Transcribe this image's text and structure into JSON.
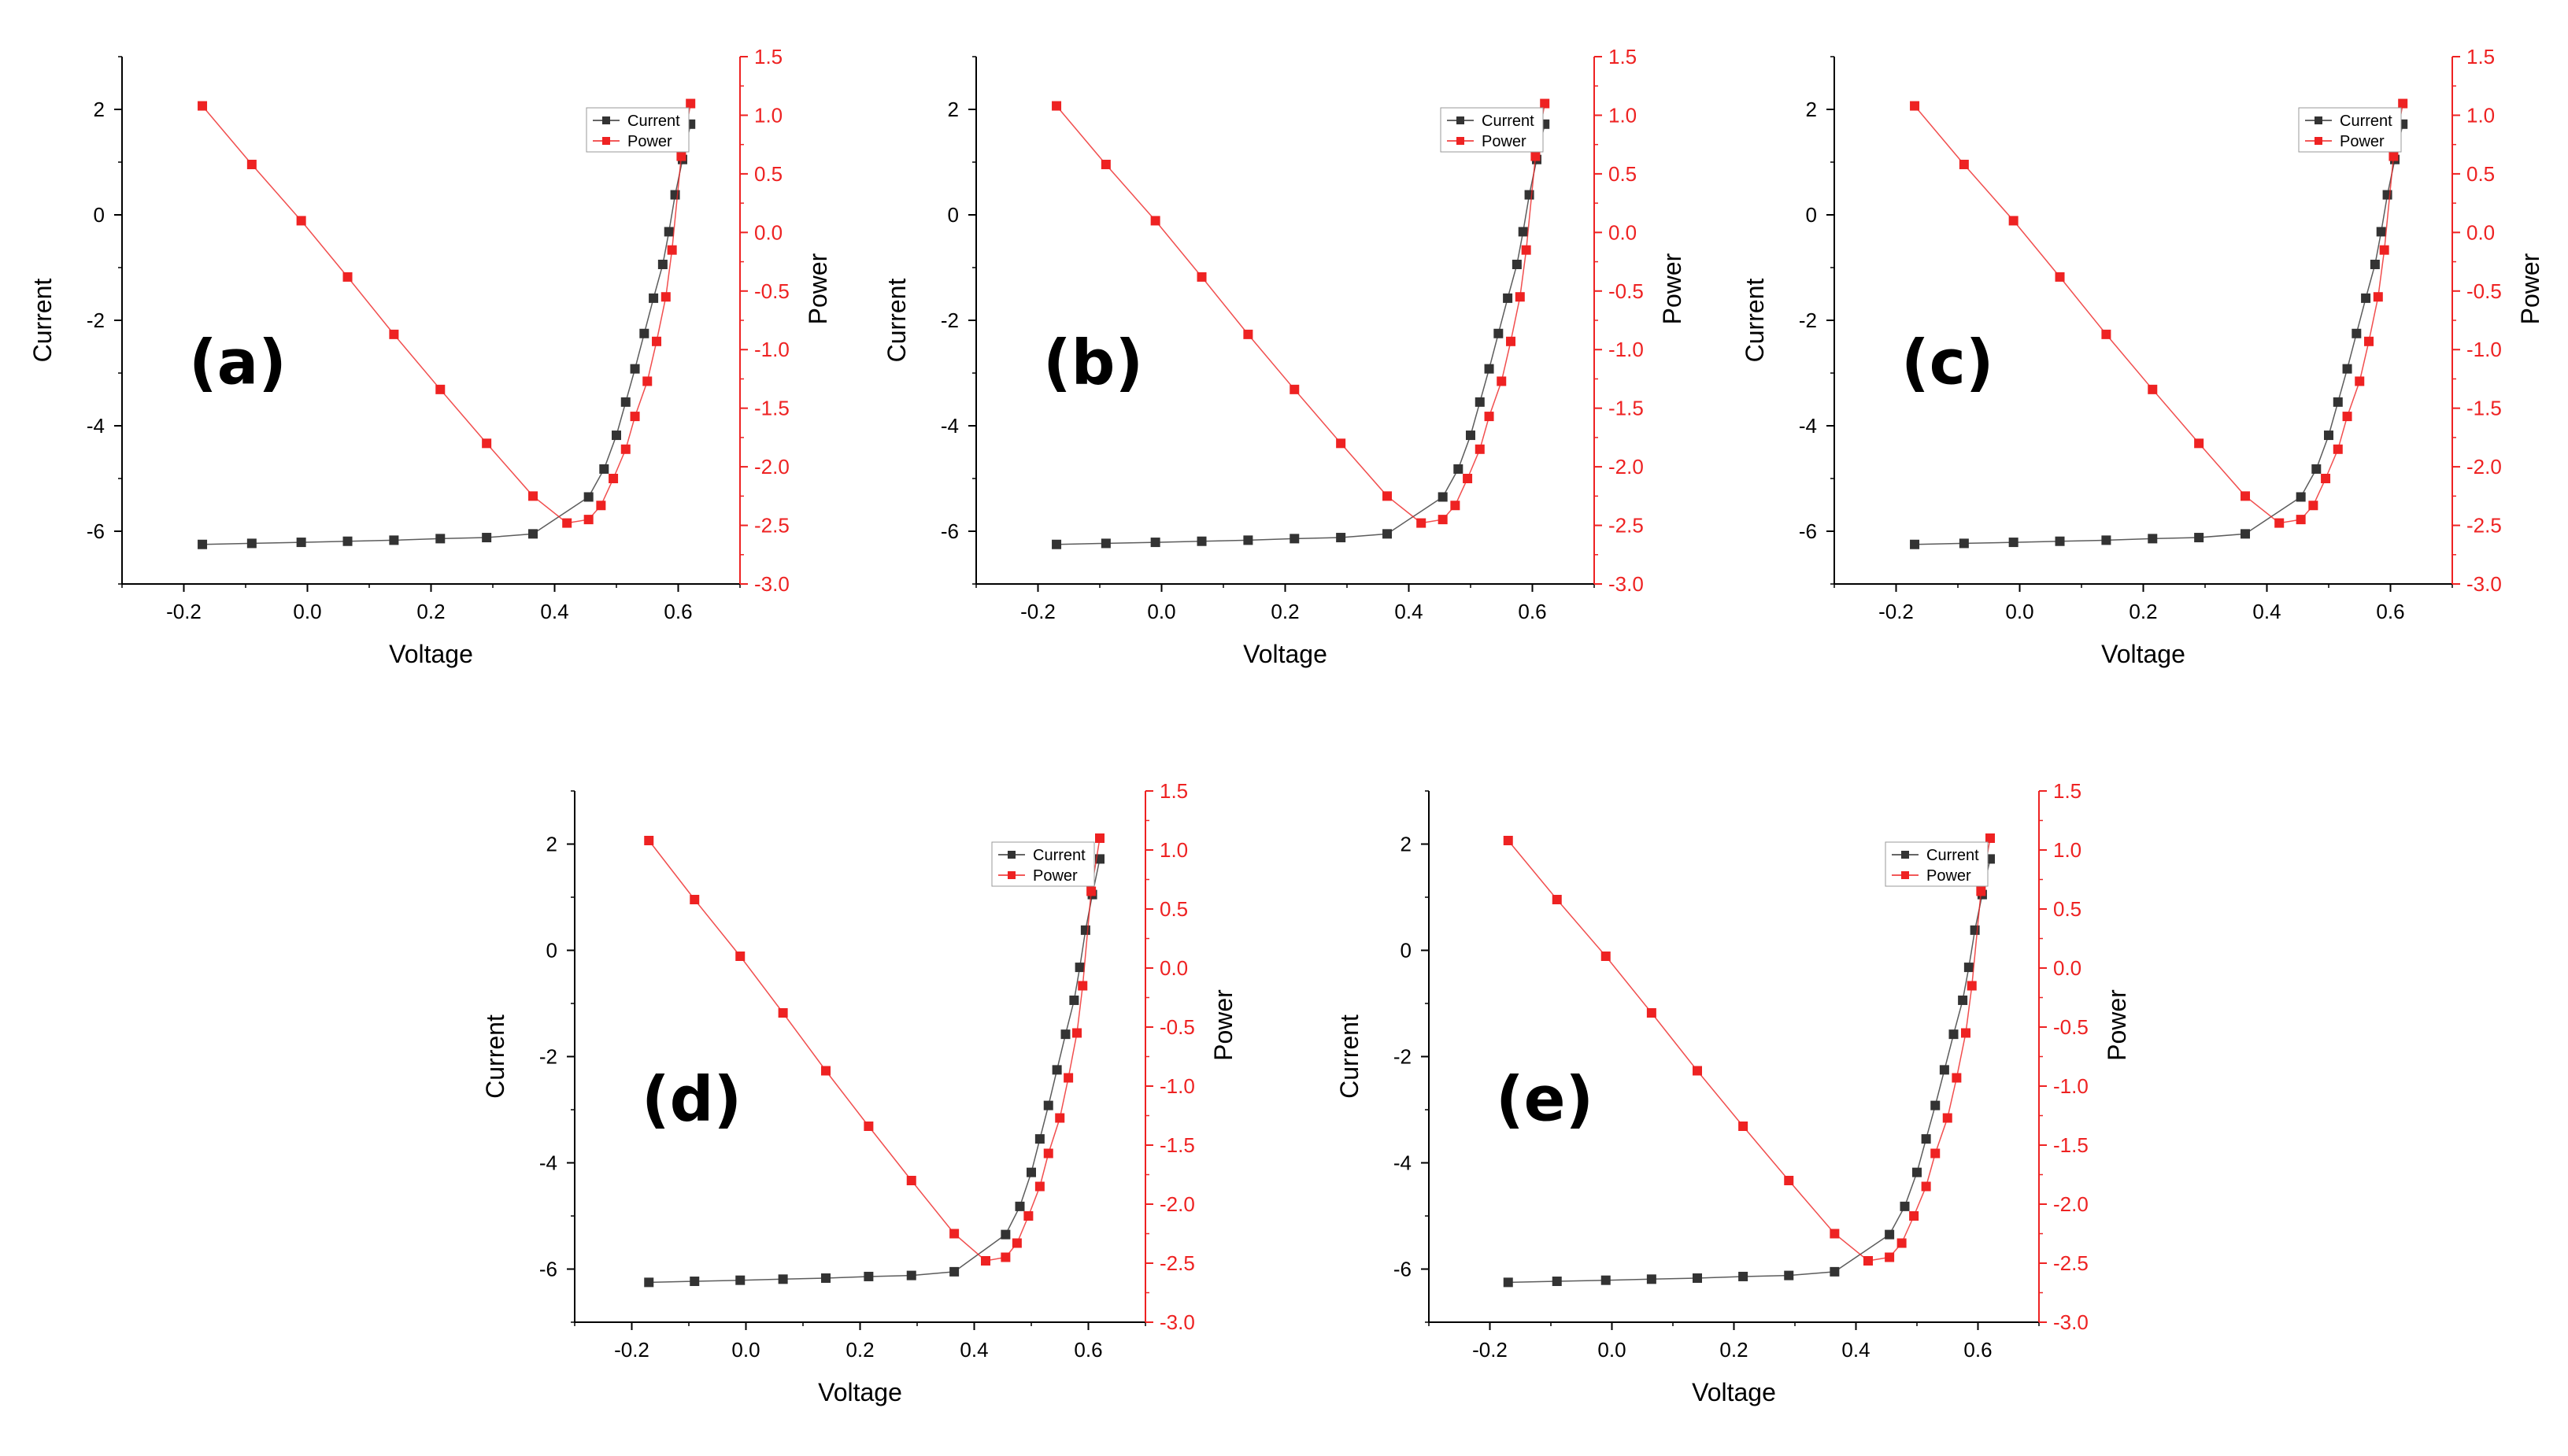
{
  "colors": {
    "current": "#333333",
    "power": "#ee2222",
    "axis": "#000000",
    "power_axis": "#ee2222"
  },
  "chart_data": [
    {
      "type": "line",
      "panel_label": "(a)",
      "xlabel": "Voltage",
      "ylabel": "Current",
      "y2label": "Power",
      "xlim": [
        -0.3,
        0.7
      ],
      "ylim": [
        -7,
        3
      ],
      "y2lim": [
        -3.0,
        1.5
      ],
      "xticks": [
        "-0.2",
        "0.0",
        "0.2",
        "0.4",
        "0.6"
      ],
      "yticks": [
        "-6",
        "-4",
        "-2",
        "0",
        "2"
      ],
      "y2ticks": [
        "-3.0",
        "-2.5",
        "-2.0",
        "-1.5",
        "-1.0",
        "-0.5",
        "0.0",
        "0.5",
        "1.0",
        "1.5"
      ],
      "legend": [
        "Current",
        "Power"
      ],
      "series": [
        {
          "name": "Current",
          "axis": "left",
          "x": [
            -0.17,
            -0.09,
            -0.01,
            0.065,
            0.14,
            0.215,
            0.29,
            0.365,
            0.455,
            0.48,
            0.5,
            0.515,
            0.53,
            0.545,
            0.56,
            0.575,
            0.585,
            0.595,
            0.607,
            0.62
          ],
          "y": [
            -6.25,
            -6.23,
            -6.21,
            -6.19,
            -6.17,
            -6.14,
            -6.12,
            -6.05,
            -5.35,
            -4.82,
            -4.18,
            -3.55,
            -2.92,
            -2.25,
            -1.58,
            -0.94,
            -0.32,
            0.38,
            1.05,
            1.72
          ]
        },
        {
          "name": "Power",
          "axis": "right",
          "x": [
            -0.17,
            -0.09,
            -0.01,
            0.065,
            0.14,
            0.215,
            0.29,
            0.365,
            0.42,
            0.455,
            0.475,
            0.495,
            0.515,
            0.53,
            0.55,
            0.565,
            0.58,
            0.59,
            0.605,
            0.62
          ],
          "y": [
            1.08,
            0.58,
            0.1,
            -0.38,
            -0.87,
            -1.34,
            -1.8,
            -2.25,
            -2.48,
            -2.45,
            -2.33,
            -2.1,
            -1.85,
            -1.57,
            -1.27,
            -0.93,
            -0.55,
            -0.15,
            0.65,
            1.1
          ]
        }
      ]
    },
    {
      "type": "line",
      "panel_label": "(b)",
      "xlabel": "Voltage",
      "ylabel": "Current",
      "y2label": "Power",
      "xlim": [
        -0.3,
        0.7
      ],
      "ylim": [
        -7,
        3
      ],
      "y2lim": [
        -3.0,
        1.5
      ],
      "xticks": [
        "-0.2",
        "0.0",
        "0.2",
        "0.4",
        "0.6"
      ],
      "yticks": [
        "-6",
        "-4",
        "-2",
        "0",
        "2"
      ],
      "y2ticks": [
        "-3.0",
        "-2.5",
        "-2.0",
        "-1.5",
        "-1.0",
        "-0.5",
        "0.0",
        "0.5",
        "1.0",
        "1.5"
      ],
      "legend": [
        "Current",
        "Power"
      ],
      "series": [
        {
          "name": "Current",
          "axis": "left",
          "x": [
            -0.17,
            -0.09,
            -0.01,
            0.065,
            0.14,
            0.215,
            0.29,
            0.365,
            0.455,
            0.48,
            0.5,
            0.515,
            0.53,
            0.545,
            0.56,
            0.575,
            0.585,
            0.595,
            0.607,
            0.62
          ],
          "y": [
            -6.25,
            -6.23,
            -6.21,
            -6.19,
            -6.17,
            -6.14,
            -6.12,
            -6.05,
            -5.35,
            -4.82,
            -4.18,
            -3.55,
            -2.92,
            -2.25,
            -1.58,
            -0.94,
            -0.32,
            0.38,
            1.05,
            1.72
          ]
        },
        {
          "name": "Power",
          "axis": "right",
          "x": [
            -0.17,
            -0.09,
            -0.01,
            0.065,
            0.14,
            0.215,
            0.29,
            0.365,
            0.42,
            0.455,
            0.475,
            0.495,
            0.515,
            0.53,
            0.55,
            0.565,
            0.58,
            0.59,
            0.605,
            0.62
          ],
          "y": [
            1.08,
            0.58,
            0.1,
            -0.38,
            -0.87,
            -1.34,
            -1.8,
            -2.25,
            -2.48,
            -2.45,
            -2.33,
            -2.1,
            -1.85,
            -1.57,
            -1.27,
            -0.93,
            -0.55,
            -0.15,
            0.65,
            1.1
          ]
        }
      ]
    },
    {
      "type": "line",
      "panel_label": "(c)",
      "xlabel": "Voltage",
      "ylabel": "Current",
      "y2label": "Power",
      "xlim": [
        -0.3,
        0.7
      ],
      "ylim": [
        -7,
        3
      ],
      "y2lim": [
        -3.0,
        1.5
      ],
      "xticks": [
        "-0.2",
        "0.0",
        "0.2",
        "0.4",
        "0.6"
      ],
      "yticks": [
        "-6",
        "-4",
        "-2",
        "0",
        "2"
      ],
      "y2ticks": [
        "-3.0",
        "-2.5",
        "-2.0",
        "-1.5",
        "-1.0",
        "-0.5",
        "0.0",
        "0.5",
        "1.0",
        "1.5"
      ],
      "legend": [
        "Current",
        "Power"
      ],
      "series": [
        {
          "name": "Current",
          "axis": "left",
          "x": [
            -0.17,
            -0.09,
            -0.01,
            0.065,
            0.14,
            0.215,
            0.29,
            0.365,
            0.455,
            0.48,
            0.5,
            0.515,
            0.53,
            0.545,
            0.56,
            0.575,
            0.585,
            0.595,
            0.607,
            0.62
          ],
          "y": [
            -6.25,
            -6.23,
            -6.21,
            -6.19,
            -6.17,
            -6.14,
            -6.12,
            -6.05,
            -5.35,
            -4.82,
            -4.18,
            -3.55,
            -2.92,
            -2.25,
            -1.58,
            -0.94,
            -0.32,
            0.38,
            1.05,
            1.72
          ]
        },
        {
          "name": "Power",
          "axis": "right",
          "x": [
            -0.17,
            -0.09,
            -0.01,
            0.065,
            0.14,
            0.215,
            0.29,
            0.365,
            0.42,
            0.455,
            0.475,
            0.495,
            0.515,
            0.53,
            0.55,
            0.565,
            0.58,
            0.59,
            0.605,
            0.62
          ],
          "y": [
            1.08,
            0.58,
            0.1,
            -0.38,
            -0.87,
            -1.34,
            -1.8,
            -2.25,
            -2.48,
            -2.45,
            -2.33,
            -2.1,
            -1.85,
            -1.57,
            -1.27,
            -0.93,
            -0.55,
            -0.15,
            0.65,
            1.1
          ]
        }
      ]
    },
    {
      "type": "line",
      "panel_label": "(d)",
      "xlabel": "Voltage",
      "ylabel": "Current",
      "y2label": "Power",
      "xlim": [
        -0.3,
        0.7
      ],
      "ylim": [
        -7,
        3
      ],
      "y2lim": [
        -3.0,
        1.5
      ],
      "xticks": [
        "-0.2",
        "0.0",
        "0.2",
        "0.4",
        "0.6"
      ],
      "yticks": [
        "-6",
        "-4",
        "-2",
        "0",
        "2"
      ],
      "y2ticks": [
        "-3.0",
        "-2.5",
        "-2.0",
        "-1.5",
        "-1.0",
        "-0.5",
        "0.0",
        "0.5",
        "1.0",
        "1.5"
      ],
      "legend": [
        "Current",
        "Power"
      ],
      "series": [
        {
          "name": "Current",
          "axis": "left",
          "x": [
            -0.17,
            -0.09,
            -0.01,
            0.065,
            0.14,
            0.215,
            0.29,
            0.365,
            0.455,
            0.48,
            0.5,
            0.515,
            0.53,
            0.545,
            0.56,
            0.575,
            0.585,
            0.595,
            0.607,
            0.62
          ],
          "y": [
            -6.25,
            -6.23,
            -6.21,
            -6.19,
            -6.17,
            -6.14,
            -6.12,
            -6.05,
            -5.35,
            -4.82,
            -4.18,
            -3.55,
            -2.92,
            -2.25,
            -1.58,
            -0.94,
            -0.32,
            0.38,
            1.05,
            1.72
          ]
        },
        {
          "name": "Power",
          "axis": "right",
          "x": [
            -0.17,
            -0.09,
            -0.01,
            0.065,
            0.14,
            0.215,
            0.29,
            0.365,
            0.42,
            0.455,
            0.475,
            0.495,
            0.515,
            0.53,
            0.55,
            0.565,
            0.58,
            0.59,
            0.605,
            0.62
          ],
          "y": [
            1.08,
            0.58,
            0.1,
            -0.38,
            -0.87,
            -1.34,
            -1.8,
            -2.25,
            -2.48,
            -2.45,
            -2.33,
            -2.1,
            -1.85,
            -1.57,
            -1.27,
            -0.93,
            -0.55,
            -0.15,
            0.65,
            1.1
          ]
        }
      ]
    },
    {
      "type": "line",
      "panel_label": "(e)",
      "xlabel": "Voltage",
      "ylabel": "Current",
      "y2label": "Power",
      "xlim": [
        -0.3,
        0.7
      ],
      "ylim": [
        -7,
        3
      ],
      "y2lim": [
        -3.0,
        1.5
      ],
      "xticks": [
        "-0.2",
        "0.0",
        "0.2",
        "0.4",
        "0.6"
      ],
      "yticks": [
        "-6",
        "-4",
        "-2",
        "0",
        "2"
      ],
      "y2ticks": [
        "-3.0",
        "-2.5",
        "-2.0",
        "-1.5",
        "-1.0",
        "-0.5",
        "0.0",
        "0.5",
        "1.0",
        "1.5"
      ],
      "legend": [
        "Current",
        "Power"
      ],
      "series": [
        {
          "name": "Current",
          "axis": "left",
          "x": [
            -0.17,
            -0.09,
            -0.01,
            0.065,
            0.14,
            0.215,
            0.29,
            0.365,
            0.455,
            0.48,
            0.5,
            0.515,
            0.53,
            0.545,
            0.56,
            0.575,
            0.585,
            0.595,
            0.607,
            0.62
          ],
          "y": [
            -6.25,
            -6.23,
            -6.21,
            -6.19,
            -6.17,
            -6.14,
            -6.12,
            -6.05,
            -5.35,
            -4.82,
            -4.18,
            -3.55,
            -2.92,
            -2.25,
            -1.58,
            -0.94,
            -0.32,
            0.38,
            1.05,
            1.72
          ]
        },
        {
          "name": "Power",
          "axis": "right",
          "x": [
            -0.17,
            -0.09,
            -0.01,
            0.065,
            0.14,
            0.215,
            0.29,
            0.365,
            0.42,
            0.455,
            0.475,
            0.495,
            0.515,
            0.53,
            0.55,
            0.565,
            0.58,
            0.59,
            0.605,
            0.62
          ],
          "y": [
            1.08,
            0.58,
            0.1,
            -0.38,
            -0.87,
            -1.34,
            -1.8,
            -2.25,
            -2.48,
            -2.45,
            -2.33,
            -2.1,
            -1.85,
            -1.57,
            -1.27,
            -0.93,
            -0.55,
            -0.15,
            0.65,
            1.1
          ]
        }
      ]
    }
  ]
}
